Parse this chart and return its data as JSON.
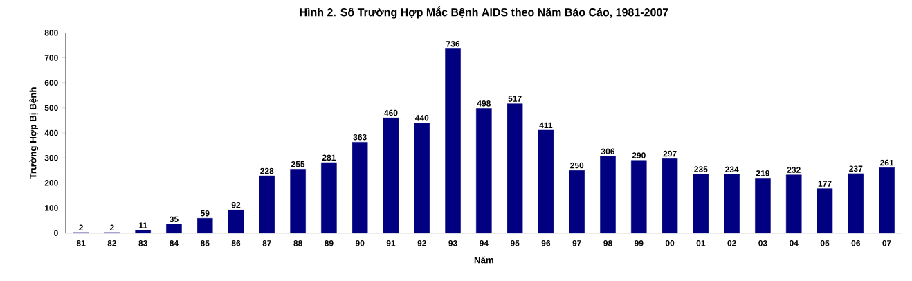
{
  "chart_data": {
    "type": "bar",
    "title": "Hình 2. Số Trường Hợp Mắc Bệnh AIDS theo Năm Báo Cáo, 1981-2007",
    "xlabel": "Năm",
    "ylabel": "Trường Hợp Bị Bệnh",
    "categories": [
      "81",
      "82",
      "83",
      "84",
      "85",
      "86",
      "87",
      "88",
      "89",
      "90",
      "91",
      "92",
      "93",
      "94",
      "95",
      "96",
      "97",
      "98",
      "99",
      "00",
      "01",
      "02",
      "03",
      "04",
      "05",
      "06",
      "07"
    ],
    "values": [
      2,
      2,
      11,
      35,
      59,
      92,
      228,
      255,
      281,
      363,
      460,
      440,
      736,
      498,
      517,
      411,
      250,
      306,
      290,
      297,
      235,
      234,
      219,
      232,
      177,
      237,
      261
    ],
    "color": "#000080",
    "ylim": [
      0,
      800
    ],
    "yticks": [
      0,
      100,
      200,
      300,
      400,
      500,
      600,
      700,
      800
    ],
    "data_labels": true
  }
}
